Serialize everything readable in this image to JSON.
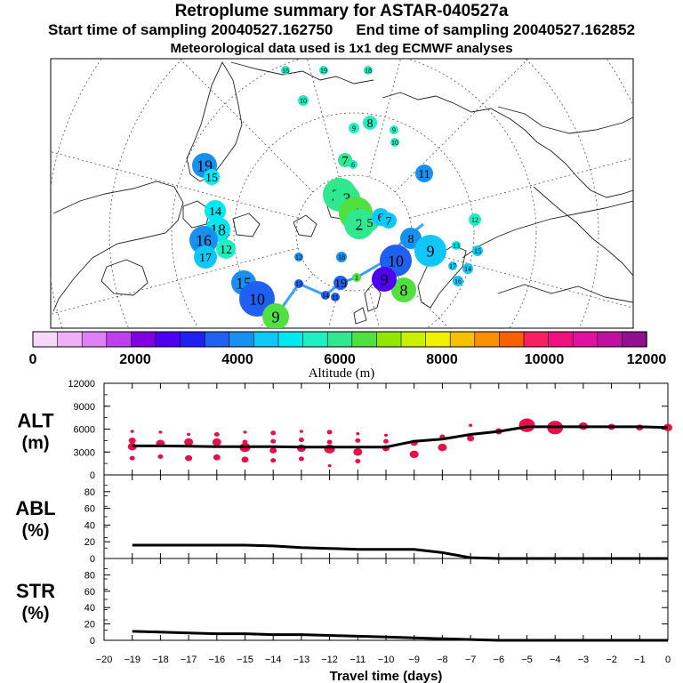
{
  "header": {
    "title": "Retroplume summary for ASTAR-040527a",
    "start_label": "Start time of sampling 20040527.162750",
    "end_label": "End time of sampling 20040527.162852",
    "met_note": "Meteorological data used is 1x1 deg ECMWF analyses"
  },
  "colors": {
    "trajectory": "#3aa0ff",
    "alt_dots": "#e8104a",
    "colorbar": [
      "#f8d8f8",
      "#f0b0f8",
      "#e080f8",
      "#c040f0",
      "#8000e0",
      "#5000f0",
      "#2020f0",
      "#2060f0",
      "#1890f0",
      "#10c8f8",
      "#00e8f0",
      "#20f0c0",
      "#30e890",
      "#50e040",
      "#90e800",
      "#c8f000",
      "#f0f000",
      "#f8c000",
      "#f89000",
      "#f86000",
      "#f82060",
      "#f01080",
      "#e010a0",
      "#c010a0",
      "#901090"
    ]
  },
  "colorbar": {
    "tick_labels": [
      "0",
      "2000",
      "4000",
      "6000",
      "8000",
      "10000",
      "12000"
    ],
    "label": "Altitude (m)"
  },
  "map": {
    "markers": [
      {
        "label": "18",
        "alt": 5800
      },
      {
        "label": "19",
        "alt": 5600
      },
      {
        "label": "18",
        "alt": 5900
      },
      {
        "label": "10",
        "alt": 5800
      },
      {
        "label": "9",
        "alt": 5900
      },
      {
        "label": "8",
        "alt": 5800
      },
      {
        "label": "9",
        "alt": 5700
      },
      {
        "label": "10",
        "alt": 5800
      },
      {
        "label": "7",
        "alt": 6300
      },
      {
        "label": "6",
        "alt": 5500
      },
      {
        "label": "19",
        "alt": 4300
      },
      {
        "label": "15",
        "alt": 5200
      },
      {
        "label": "11",
        "alt": 4300
      },
      {
        "label": "12",
        "alt": 5600
      },
      {
        "label": "23",
        "alt": 6100
      },
      {
        "label": "14",
        "alt": 5400
      },
      {
        "label": "18",
        "alt": 5200
      },
      {
        "label": "16",
        "alt": 4300
      },
      {
        "label": "12",
        "alt": 5600
      },
      {
        "label": "3",
        "alt": 6200
      },
      {
        "label": "4",
        "alt": 6500
      },
      {
        "label": "2",
        "alt": 6400
      },
      {
        "label": "5",
        "alt": 6300
      },
      {
        "label": "6",
        "alt": 4500
      },
      {
        "label": "7",
        "alt": 4500
      },
      {
        "label": "8",
        "alt": 4100
      },
      {
        "label": "9",
        "alt": 4900
      },
      {
        "label": "13",
        "alt": 5400
      },
      {
        "label": "17",
        "alt": 4700
      },
      {
        "label": "14",
        "alt": 4600
      },
      {
        "label": "15",
        "alt": 4600
      },
      {
        "label": "16",
        "alt": 4600
      },
      {
        "label": "17",
        "alt": 4600
      },
      {
        "label": "18",
        "alt": 4300
      },
      {
        "label": "19",
        "alt": 3500
      },
      {
        "label": "15",
        "alt": 4200
      },
      {
        "label": "10",
        "alt": 3700
      },
      {
        "label": "9",
        "alt": 6600
      },
      {
        "label": "8",
        "alt": 6500
      },
      {
        "label": "10",
        "alt": 3800
      },
      {
        "label": "9",
        "alt": 2600
      },
      {
        "label": "12",
        "alt": 4100
      },
      {
        "label": "13",
        "alt": 3800
      },
      {
        "label": "14",
        "alt": 3800
      },
      {
        "label": "11",
        "alt": 3500
      },
      {
        "label": "1",
        "alt": 6700
      }
    ]
  },
  "chart_data": [
    {
      "type": "line",
      "name": "ALT",
      "ylabel": "ALT",
      "yunit": "(m)",
      "ylim": [
        0,
        12000
      ],
      "yticks": [
        "0",
        "3000",
        "6000",
        "9000",
        "12000"
      ],
      "xlim": [
        -20,
        0
      ],
      "x": [
        -19,
        -18,
        -17,
        -16,
        -15,
        -14,
        -13,
        -12,
        -11,
        -10,
        -9,
        -8,
        -7,
        -6,
        -5,
        -4,
        -3,
        -2,
        -1,
        0
      ],
      "values": [
        3800,
        3800,
        3750,
        3700,
        3700,
        3700,
        3650,
        3650,
        3650,
        3650,
        4400,
        4700,
        5300,
        5700,
        6300,
        6300,
        6300,
        6300,
        6300,
        6200
      ],
      "spread_points": [
        {
          "x": -19,
          "y": 5700,
          "s": 2
        },
        {
          "x": -19,
          "y": 4500,
          "s": 4
        },
        {
          "x": -19,
          "y": 3700,
          "s": 5
        },
        {
          "x": -19,
          "y": 2200,
          "s": 3
        },
        {
          "x": -18,
          "y": 5600,
          "s": 2
        },
        {
          "x": -18,
          "y": 4100,
          "s": 5
        },
        {
          "x": -18,
          "y": 2400,
          "s": 3
        },
        {
          "x": -17,
          "y": 5300,
          "s": 2
        },
        {
          "x": -17,
          "y": 4300,
          "s": 5
        },
        {
          "x": -17,
          "y": 2200,
          "s": 4
        },
        {
          "x": -16,
          "y": 5300,
          "s": 3
        },
        {
          "x": -16,
          "y": 4300,
          "s": 5
        },
        {
          "x": -16,
          "y": 2300,
          "s": 4
        },
        {
          "x": -15,
          "y": 5600,
          "s": 2
        },
        {
          "x": -15,
          "y": 4300,
          "s": 3
        },
        {
          "x": -15,
          "y": 3600,
          "s": 6
        },
        {
          "x": -15,
          "y": 2000,
          "s": 4
        },
        {
          "x": -14,
          "y": 5500,
          "s": 3
        },
        {
          "x": -14,
          "y": 4400,
          "s": 3
        },
        {
          "x": -14,
          "y": 3200,
          "s": 4
        },
        {
          "x": -14,
          "y": 1900,
          "s": 3
        },
        {
          "x": -13,
          "y": 5700,
          "s": 2
        },
        {
          "x": -13,
          "y": 4600,
          "s": 3
        },
        {
          "x": -13,
          "y": 3500,
          "s": 5
        },
        {
          "x": -13,
          "y": 2100,
          "s": 3
        },
        {
          "x": -12,
          "y": 5600,
          "s": 3
        },
        {
          "x": -12,
          "y": 4300,
          "s": 3
        },
        {
          "x": -12,
          "y": 3400,
          "s": 6
        },
        {
          "x": -12,
          "y": 1200,
          "s": 2
        },
        {
          "x": -11,
          "y": 5400,
          "s": 2
        },
        {
          "x": -11,
          "y": 4500,
          "s": 3
        },
        {
          "x": -11,
          "y": 3000,
          "s": 5
        },
        {
          "x": -11,
          "y": 1800,
          "s": 3
        },
        {
          "x": -10,
          "y": 5200,
          "s": 2
        },
        {
          "x": -10,
          "y": 4400,
          "s": 3
        },
        {
          "x": -10,
          "y": 3500,
          "s": 4
        },
        {
          "x": -9,
          "y": 4200,
          "s": 4
        },
        {
          "x": -9,
          "y": 2700,
          "s": 5
        },
        {
          "x": -8,
          "y": 5000,
          "s": 3
        },
        {
          "x": -8,
          "y": 3600,
          "s": 5
        },
        {
          "x": -7,
          "y": 6500,
          "s": 2
        },
        {
          "x": -7,
          "y": 4800,
          "s": 4
        },
        {
          "x": -6,
          "y": 5700,
          "s": 4
        },
        {
          "x": -5,
          "y": 6500,
          "s": 9
        },
        {
          "x": -4,
          "y": 6200,
          "s": 9
        },
        {
          "x": -3,
          "y": 6400,
          "s": 5
        },
        {
          "x": -2,
          "y": 6300,
          "s": 4
        },
        {
          "x": -1,
          "y": 6200,
          "s": 4
        },
        {
          "x": 0,
          "y": 6200,
          "s": 5
        }
      ]
    },
    {
      "type": "line",
      "name": "ABL",
      "ylabel": "ABL",
      "yunit": "(%)",
      "ylim": [
        0,
        100
      ],
      "yticks": [
        "0",
        "20",
        "40",
        "60",
        "80"
      ],
      "x": [
        -19,
        -18,
        -17,
        -16,
        -15,
        -14,
        -13,
        -12,
        -11,
        -10,
        -9,
        -8,
        -7,
        -6,
        -5,
        -4,
        -3,
        -2,
        -1,
        0
      ],
      "values": [
        16,
        16,
        16,
        16,
        16,
        15,
        13,
        12,
        11,
        11,
        11,
        7,
        1,
        0,
        0,
        0,
        0,
        0,
        0,
        0
      ]
    },
    {
      "type": "line",
      "name": "STR",
      "ylabel": "STR",
      "yunit": "(%)",
      "ylim": [
        0,
        100
      ],
      "yticks": [
        "0",
        "20",
        "40",
        "60",
        "80"
      ],
      "x": [
        -19,
        -18,
        -17,
        -16,
        -15,
        -14,
        -13,
        -12,
        -11,
        -10,
        -9,
        -8,
        -7,
        -6,
        -5,
        -4,
        -3,
        -2,
        -1,
        0
      ],
      "values": [
        11,
        10,
        9,
        8,
        8,
        7,
        7,
        6,
        5,
        4,
        3,
        2,
        1,
        0,
        0,
        0,
        0,
        0,
        0,
        0
      ],
      "xticks": [
        "−20",
        "−19",
        "−18",
        "−17",
        "−16",
        "−15",
        "−14",
        "−13",
        "−12",
        "−11",
        "−10",
        "−9",
        "−8",
        "−7",
        "−6",
        "−5",
        "−4",
        "−3",
        "−2",
        "−1",
        "0"
      ],
      "xlabel": "Travel time (days)"
    }
  ]
}
